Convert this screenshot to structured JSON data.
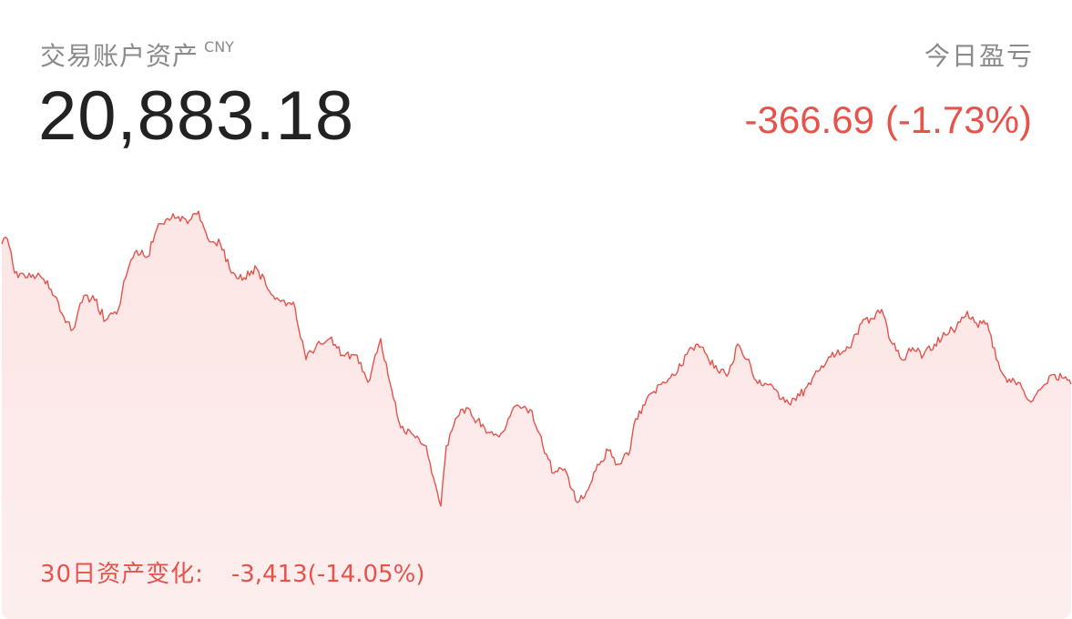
{
  "header": {
    "asset_label": "交易账户资产",
    "currency": "CNY",
    "asset_value": "20,883.18",
    "pnl_label": "今日盈亏",
    "pnl_value": "-366.69",
    "pnl_percent": "(-1.73%)"
  },
  "footer": {
    "change_label": "30日资产变化:",
    "change_value": "-3,413(-14.05%)"
  },
  "colors": {
    "down": "#e5534b",
    "fill": "#fdeaea",
    "text_primary": "#222222",
    "text_secondary": "#8a8a8a"
  }
}
